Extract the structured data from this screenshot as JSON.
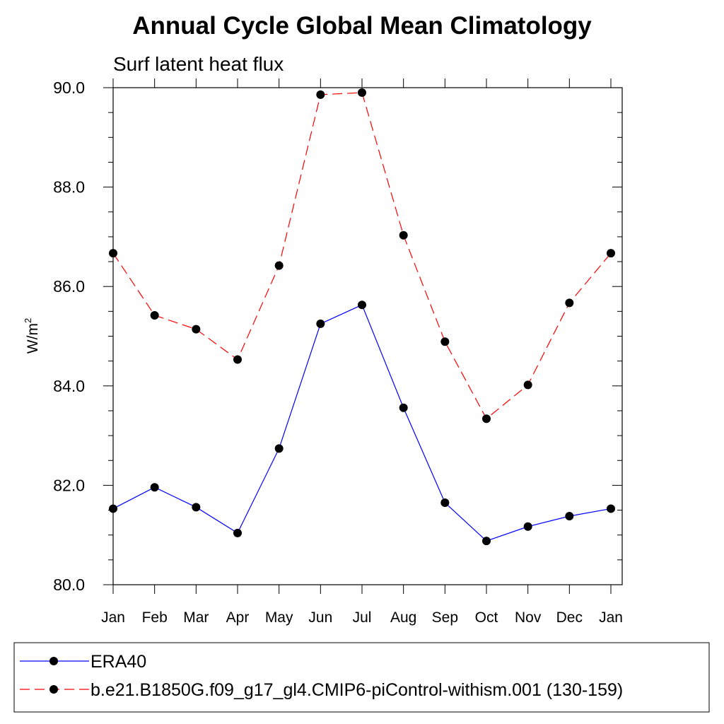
{
  "chart_data": {
    "type": "line",
    "title": "Annual Cycle Global Mean Climatology",
    "subtitle": "Surf latent heat flux",
    "ylabel": "W/m",
    "ylabel_superscript": "2",
    "ylim": [
      80.0,
      90.0
    ],
    "yticks": [
      "80.0",
      "82.0",
      "84.0",
      "86.0",
      "88.0",
      "90.0"
    ],
    "categories": [
      "Jan",
      "Feb",
      "Mar",
      "Apr",
      "May",
      "Jun",
      "Jul",
      "Aug",
      "Sep",
      "Oct",
      "Nov",
      "Dec",
      "Jan"
    ],
    "grid": false,
    "legend_position": "bottom",
    "series": [
      {
        "name": "ERA40",
        "color": "#0000ff",
        "dash": "solid",
        "marker": "filled-circle",
        "values": [
          81.53,
          81.96,
          81.56,
          81.04,
          82.74,
          85.25,
          85.63,
          83.56,
          81.65,
          80.88,
          81.17,
          81.38,
          81.53
        ]
      },
      {
        "name": "b.e21.B1850G.f09_g17_gl4.CMIP6-piControl-withism.001 (130-159)",
        "color": "#ff0000",
        "dash": "dashed",
        "marker": "filled-circle",
        "values": [
          86.67,
          85.42,
          85.14,
          84.53,
          86.42,
          89.86,
          89.9,
          87.03,
          84.89,
          83.34,
          84.02,
          85.67,
          86.67
        ]
      }
    ]
  }
}
